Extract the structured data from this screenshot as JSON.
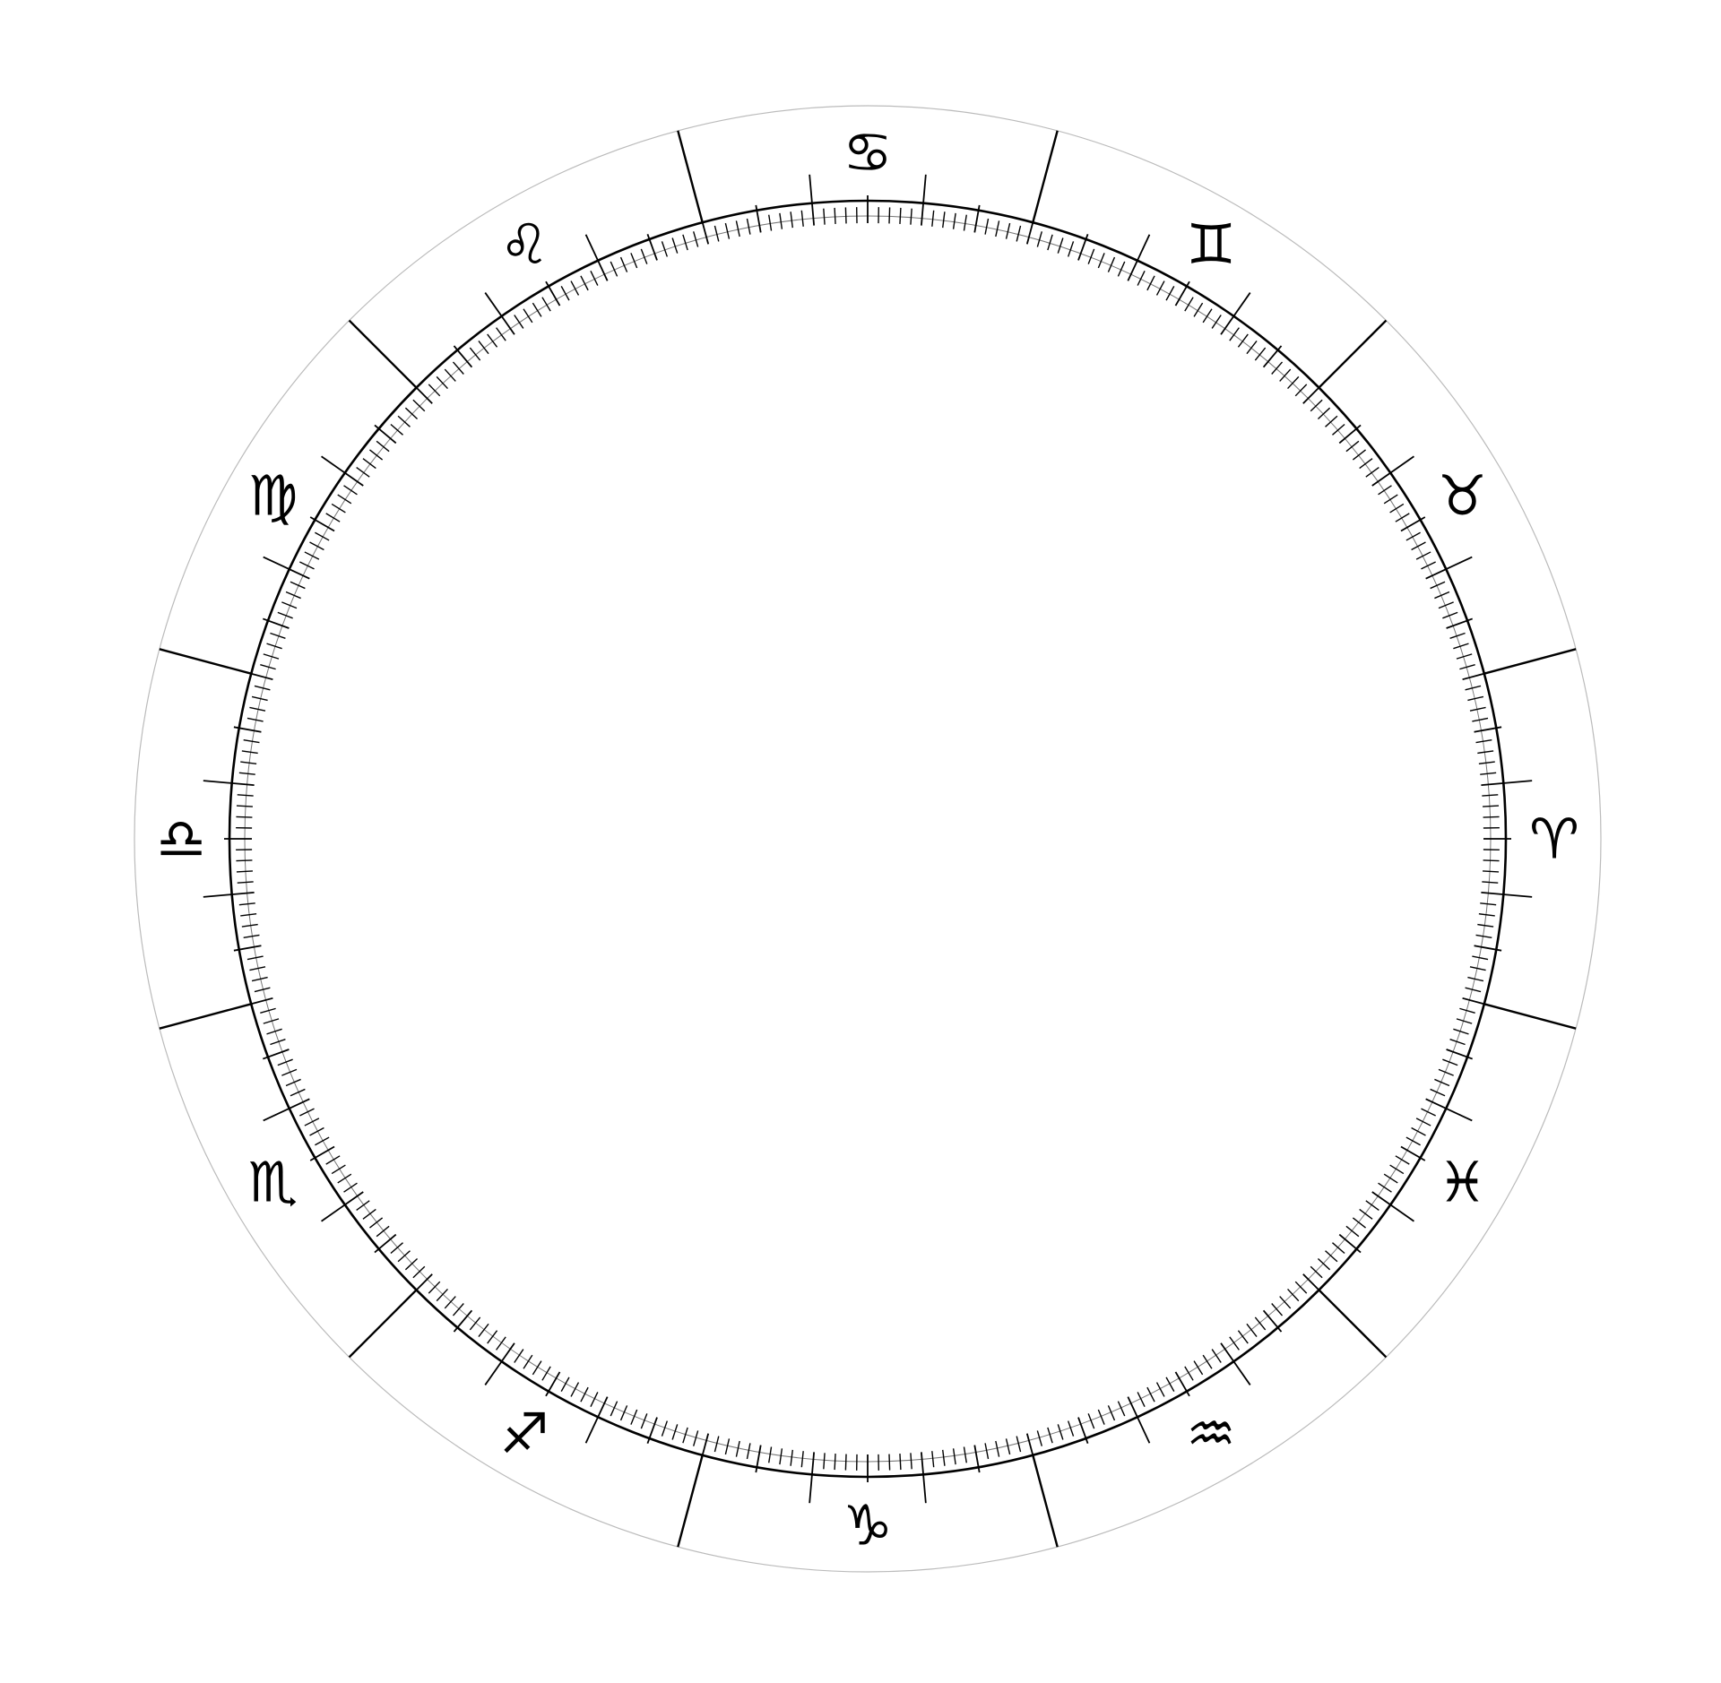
{
  "wheel": {
    "signs": [
      {
        "name": "Aries",
        "glyph": "♈"
      },
      {
        "name": "Taurus",
        "glyph": "♉"
      },
      {
        "name": "Gemini",
        "glyph": "♊"
      },
      {
        "name": "Cancer",
        "glyph": "♋"
      },
      {
        "name": "Leo",
        "glyph": "♌"
      },
      {
        "name": "Virgo",
        "glyph": "♍"
      },
      {
        "name": "Libra",
        "glyph": "♎"
      },
      {
        "name": "Scorpio",
        "glyph": "♏"
      },
      {
        "name": "Sagittarius",
        "glyph": "♐"
      },
      {
        "name": "Capricorn",
        "glyph": "♑"
      },
      {
        "name": "Aquarius",
        "glyph": "♒"
      },
      {
        "name": "Pisces",
        "glyph": "♓"
      }
    ],
    "degree_ticks": {
      "minor_every_deg": 1,
      "mid_every_deg": 5,
      "major_every_deg": 10,
      "sign_boundary_every_deg": 30
    },
    "colors": {
      "ink": "#000000",
      "outer_band": "#ffffff"
    }
  }
}
